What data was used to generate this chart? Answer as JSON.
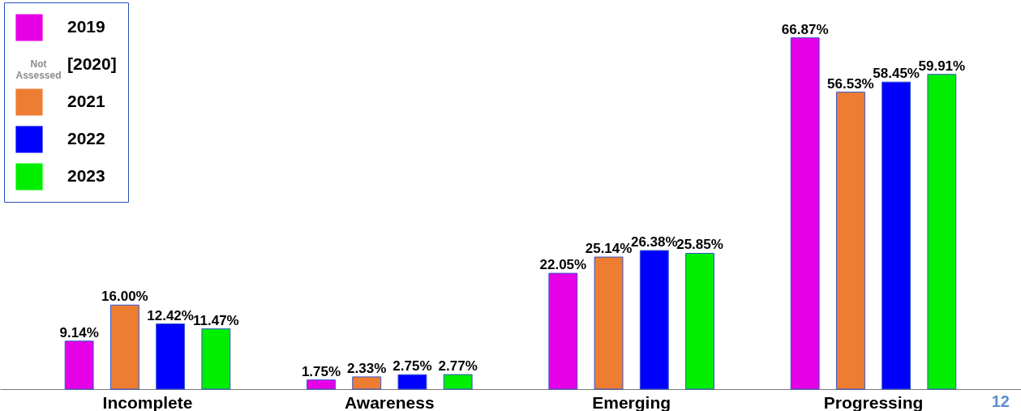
{
  "chart_data": {
    "type": "bar",
    "categories": [
      "Incomplete",
      "Awareness",
      "Emerging",
      "Progressing"
    ],
    "series": [
      {
        "name": "2019",
        "color": "#e600e6",
        "values": [
          9.14,
          1.75,
          22.05,
          66.87
        ],
        "value_labels": [
          "9.14%",
          "1.75%",
          "22.05%",
          "66.87%"
        ]
      },
      {
        "name": "[2020]",
        "values": [
          null,
          null,
          null,
          null
        ]
      },
      {
        "name": "2021",
        "color": "#ed7d31",
        "values": [
          16.0,
          2.33,
          25.14,
          56.53
        ],
        "value_labels": [
          "16.00%",
          "2.33%",
          "25.14%",
          "56.53%"
        ]
      },
      {
        "name": "2022",
        "color": "#0000ff",
        "values": [
          12.42,
          2.75,
          26.38,
          58.45
        ],
        "value_labels": [
          "12.42%",
          "2.75%",
          "26.38%",
          "58.45%"
        ]
      },
      {
        "name": "2023",
        "color": "#00ee00",
        "values": [
          11.47,
          2.77,
          25.85,
          59.91
        ],
        "value_labels": [
          "11.47%",
          "2.77%",
          "25.85%",
          "59.91%"
        ]
      }
    ],
    "legend": "top left",
    "annotations": [
      "Not Assessed",
      "12"
    ]
  }
}
